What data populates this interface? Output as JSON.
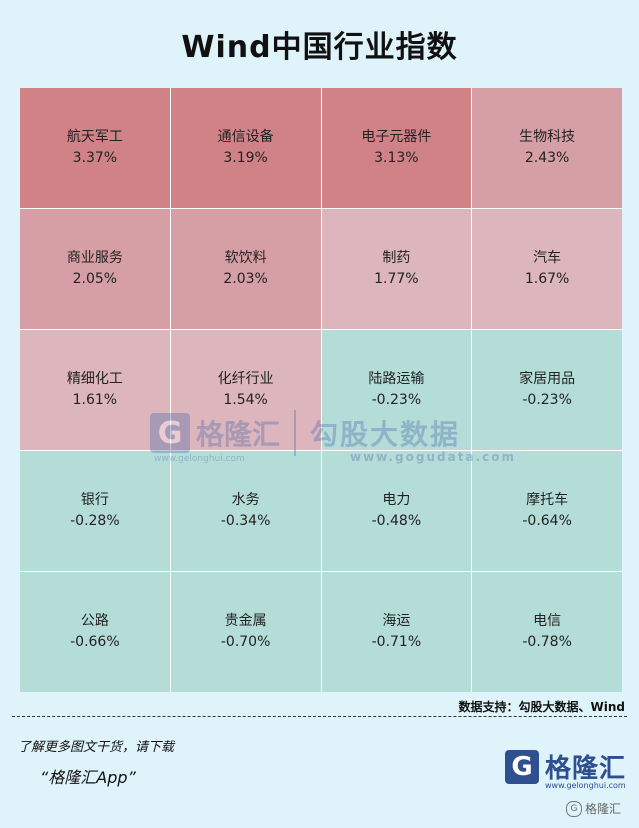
{
  "title": "Wind中国行业指数",
  "chart_data": {
    "type": "heatmap",
    "cells": [
      {
        "name": "航天军工",
        "change": "3.37%",
        "value": 3.37
      },
      {
        "name": "通信设备",
        "change": "3.19%",
        "value": 3.19
      },
      {
        "name": "电子元器件",
        "change": "3.13%",
        "value": 3.13
      },
      {
        "name": "生物科技",
        "change": "2.43%",
        "value": 2.43
      },
      {
        "name": "商业服务",
        "change": "2.05%",
        "value": 2.05
      },
      {
        "name": "软饮料",
        "change": "2.03%",
        "value": 2.03
      },
      {
        "name": "制药",
        "change": "1.77%",
        "value": 1.77
      },
      {
        "name": "汽车",
        "change": "1.67%",
        "value": 1.67
      },
      {
        "name": "精细化工",
        "change": "1.61%",
        "value": 1.61
      },
      {
        "name": "化纤行业",
        "change": "1.54%",
        "value": 1.54
      },
      {
        "name": "陆路运输",
        "change": "-0.23%",
        "value": -0.23
      },
      {
        "name": "家居用品",
        "change": "-0.23%",
        "value": -0.23
      },
      {
        "name": "银行",
        "change": "-0.28%",
        "value": -0.28
      },
      {
        "name": "水务",
        "change": "-0.34%",
        "value": -0.34
      },
      {
        "name": "电力",
        "change": "-0.48%",
        "value": -0.48
      },
      {
        "name": "摩托车",
        "change": "-0.64%",
        "value": -0.64
      },
      {
        "name": "公路",
        "change": "-0.66%",
        "value": -0.66
      },
      {
        "name": "贵金属",
        "change": "-0.70%",
        "value": -0.7
      },
      {
        "name": "海运",
        "change": "-0.71%",
        "value": -0.71
      },
      {
        "name": "电信",
        "change": "-0.78%",
        "value": -0.78
      }
    ]
  },
  "colors": {
    "positive_strong": "#d08287",
    "positive_mid": "#d69fa5",
    "positive_light": "#ddb5bc",
    "negative": "#b5ddd8"
  },
  "watermark": {
    "brand": "格隆汇",
    "brand_url": "www.gelonghui.com",
    "partner": "勾股大数据",
    "partner_url": "www.gogudata.com"
  },
  "source": "数据支持：勾股大数据、Wind",
  "promo": {
    "line1": "了解更多图文干货，请下载",
    "line2": "“格隆汇App”"
  },
  "logo": {
    "glyph": "G",
    "name": "格隆汇",
    "url": "www.gelonghui.com"
  },
  "badge": "格隆汇"
}
